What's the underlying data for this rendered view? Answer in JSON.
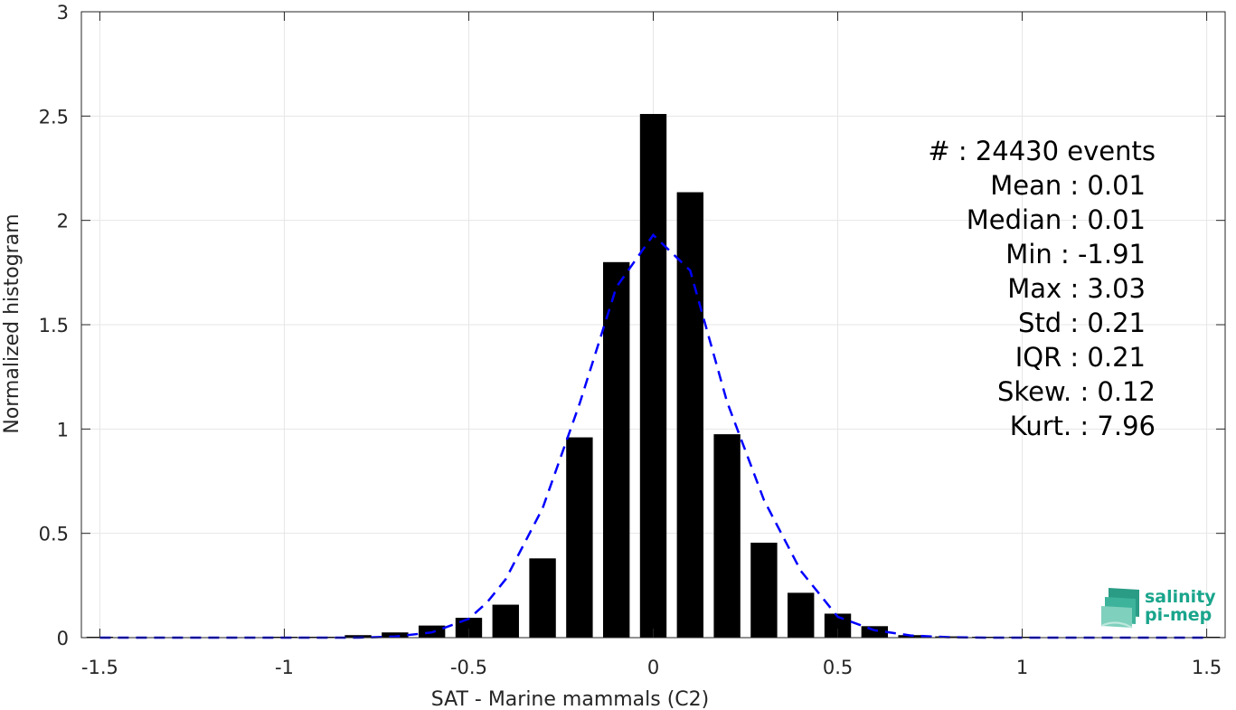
{
  "chart_data": {
    "type": "bar",
    "xlabel": "SAT - Marine mammals (C2)",
    "ylabel": "Normalized histogram",
    "xlim": [
      -1.55,
      1.55
    ],
    "ylim": [
      0,
      3
    ],
    "xticks": [
      -1.5,
      -1,
      -0.5,
      0,
      0.5,
      1,
      1.5
    ],
    "xtick_labels": [
      "-1.5",
      "-1",
      "-0.5",
      "0",
      "0.5",
      "1",
      "1.5"
    ],
    "yticks": [
      0,
      0.5,
      1,
      1.5,
      2,
      2.5,
      3
    ],
    "ytick_labels": [
      "0",
      "0.5",
      "1",
      "1.5",
      "2",
      "2.5",
      "3"
    ],
    "grid": true,
    "bar_color": "#000000",
    "bin_width": 0.1,
    "bin_centers": [
      -1.5,
      -1.4,
      -1.3,
      -1.2,
      -1.1,
      -1.0,
      -0.9,
      -0.8,
      -0.7,
      -0.6,
      -0.5,
      -0.4,
      -0.3,
      -0.2,
      -0.1,
      0.0,
      0.1,
      0.2,
      0.3,
      0.4,
      0.5,
      0.6,
      0.7,
      0.8,
      0.9,
      1.0,
      1.1,
      1.2,
      1.3,
      1.4,
      1.5
    ],
    "values": [
      0.002,
      0.0,
      0.0,
      0.0,
      0.0,
      0.002,
      0.004,
      0.012,
      0.025,
      0.058,
      0.095,
      0.158,
      0.38,
      0.96,
      1.8,
      2.51,
      2.135,
      0.975,
      0.455,
      0.215,
      0.115,
      0.055,
      0.012,
      0.006,
      0.002,
      0.002,
      0.0,
      0.0,
      0.0,
      0.0,
      0.004
    ],
    "fit_curve": {
      "style": "dashed",
      "color": "#0000ff",
      "x": [
        -1.5,
        -1.4,
        -1.3,
        -1.2,
        -1.1,
        -1.0,
        -0.9,
        -0.8,
        -0.7,
        -0.6,
        -0.5,
        -0.45,
        -0.4,
        -0.3,
        -0.2,
        -0.1,
        0.0,
        0.1,
        0.2,
        0.3,
        0.4,
        0.5,
        0.6,
        0.7,
        0.8,
        0.9,
        1.0,
        1.1,
        1.2,
        1.3,
        1.4,
        1.5
      ],
      "y": [
        0.0,
        0.0,
        0.0,
        0.0,
        0.0,
        0.0,
        0.0,
        0.0,
        0.005,
        0.025,
        0.09,
        0.17,
        0.28,
        0.62,
        1.12,
        1.68,
        1.93,
        1.76,
        1.13,
        0.66,
        0.32,
        0.1,
        0.035,
        0.01,
        0.002,
        0.0,
        0.0,
        0.0,
        0.0,
        0.0,
        0.0,
        0.0
      ]
    },
    "annotations": [
      "#  : 24430 events",
      "Mean : 0.01",
      "Median : 0.01",
      "Min : -1.91",
      "Max : 3.03",
      "Std : 0.21",
      "IQR : 0.21",
      "Skew. : 0.12",
      "Kurt. : 7.96"
    ]
  },
  "logo": {
    "line1": "salinity",
    "line2": "pi-mep",
    "color": "#1aa58c"
  }
}
